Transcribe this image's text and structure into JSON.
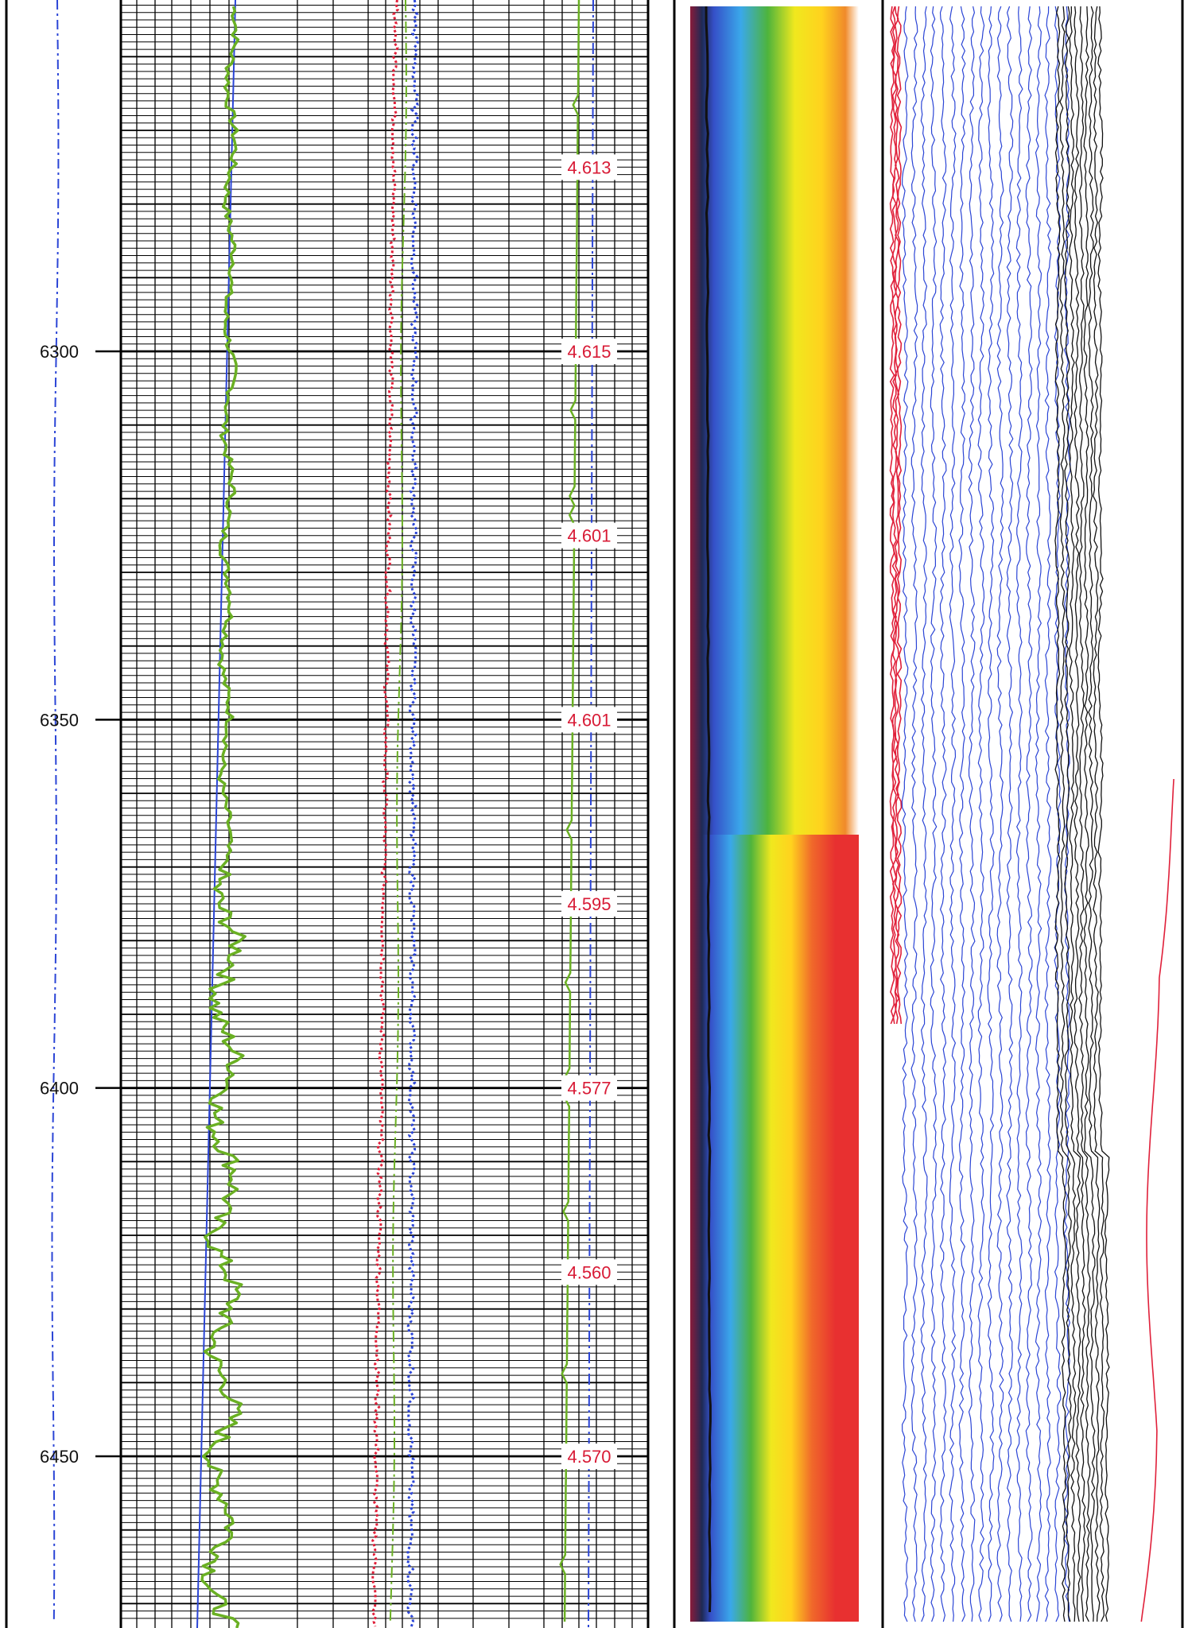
{
  "chart_data": {
    "type": "line",
    "title": "",
    "depth_range": [
      6253,
      6470
    ],
    "depth_ticks": [
      {
        "depth": 6300,
        "label": "6300"
      },
      {
        "depth": 6350,
        "label": "6350"
      },
      {
        "depth": 6400,
        "label": "6400"
      },
      {
        "depth": 6450,
        "label": "6450"
      }
    ],
    "annotations": [
      {
        "depth": 6275,
        "label": "4.613"
      },
      {
        "depth": 6300,
        "label": "4.615"
      },
      {
        "depth": 6325,
        "label": "4.601"
      },
      {
        "depth": 6350,
        "label": "4.601"
      },
      {
        "depth": 6375,
        "label": "4.595"
      },
      {
        "depth": 6400,
        "label": "4.577"
      },
      {
        "depth": 6425,
        "label": "4.560"
      },
      {
        "depth": 6450,
        "label": "4.570"
      }
    ],
    "grid": true,
    "colors": {
      "green_curve": "#6ab023",
      "blue_curve": "#2b45d6",
      "red_dotted": "#e0203a",
      "blue_dotted": "#2b45d6",
      "label_red": "#d81b36",
      "black_trace": "#111111"
    },
    "image_track": {
      "colormap": [
        "#8a1b3a",
        "#3550c8",
        "#2e8fe0",
        "#3aa8ea",
        "#4eb43c",
        "#f0e81e",
        "#ffd21e",
        "#f06a2a",
        "#e83030"
      ]
    }
  }
}
